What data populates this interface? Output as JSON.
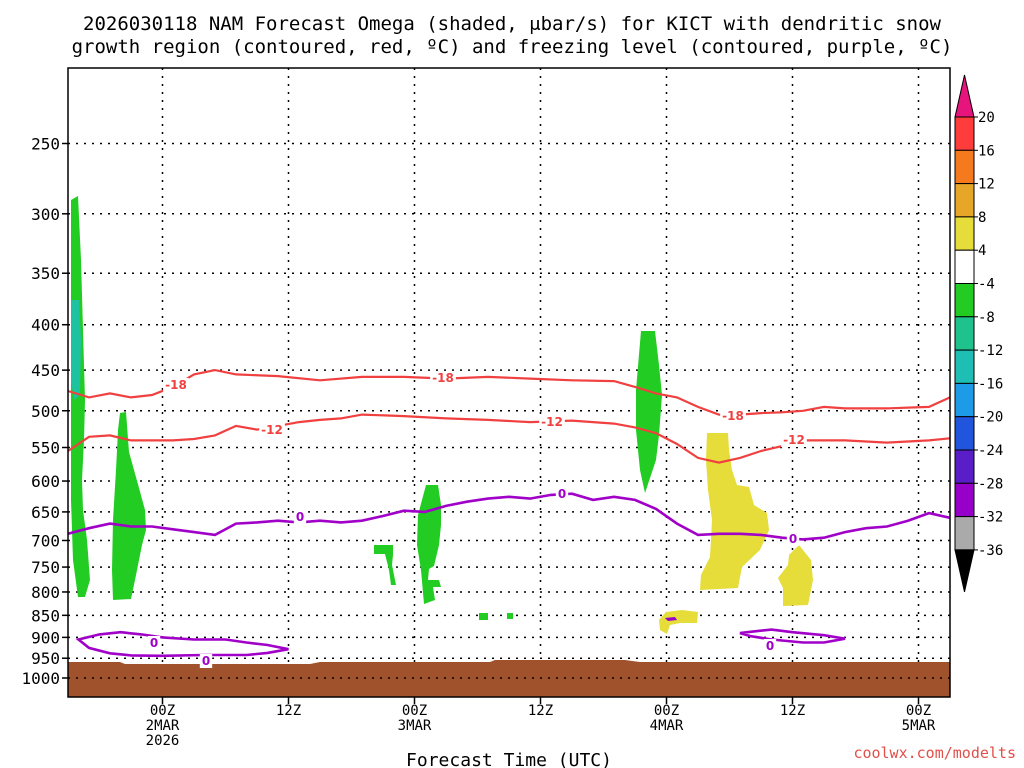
{
  "chart_data": {
    "type": "time-height cross section",
    "title_line1": "2026030118 NAM Forecast Omega (shaded, μbar/s) for KICT with dendritic snow",
    "title_line2": "growth region (contoured, red, ºC) and freezing level (contoured, purple, ºC)",
    "xlabel": "Forecast Time (UTC)",
    "credit": "coolwx.com/modelts",
    "colors": {
      "snow_growth": "#f04040",
      "freezing": "#a000c8",
      "ground": "#a0522d",
      "omega_green": "#22cc22",
      "omega_teal": "#1fc2a0",
      "omega_yellow": "#e6dc3a"
    },
    "y_axis": {
      "unit": "mb",
      "ticks": [
        "250",
        "300",
        "350",
        "400",
        "450",
        "500",
        "550",
        "600",
        "650",
        "700",
        "750",
        "800",
        "850",
        "900",
        "950",
        "1000"
      ]
    },
    "x_axis": {
      "range_hours": [
        -3,
        81
      ],
      "ticks": [
        {
          "hour": 6,
          "lines": [
            "00Z",
            "2MAR",
            "2026"
          ]
        },
        {
          "hour": 18,
          "lines": [
            "12Z"
          ]
        },
        {
          "hour": 30,
          "lines": [
            "00Z",
            "3MAR"
          ]
        },
        {
          "hour": 42,
          "lines": [
            "12Z"
          ]
        },
        {
          "hour": 54,
          "lines": [
            "00Z",
            "4MAR"
          ]
        },
        {
          "hour": 66,
          "lines": [
            "12Z"
          ]
        },
        {
          "hour": 78,
          "lines": [
            "00Z",
            "5MAR"
          ]
        }
      ]
    },
    "colorbar": {
      "levels": [
        "20",
        "16",
        "12",
        "8",
        "4",
        "-4",
        "-8",
        "-12",
        "-16",
        "-20",
        "-24",
        "-28",
        "-32",
        "-36"
      ],
      "colors": [
        "#ff3c3c",
        "#f57a1e",
        "#e6a628",
        "#e6dc3a",
        "#ffffff",
        "#22cc22",
        "#1fc28c",
        "#1ebeb4",
        "#1e9be6",
        "#2255dd",
        "#5a1ec8",
        "#9600c8",
        "#aaaaaa"
      ],
      "top_cap": "#e6147d",
      "bottom_cap": "#000000"
    },
    "contour_labels": {
      "snow_growth_upper": "-18",
      "snow_growth_lower": "-12",
      "freezing_level": "0"
    },
    "contours": {
      "iso_minus18": [
        [
          -3,
          475
        ],
        [
          -1,
          483
        ],
        [
          1,
          478
        ],
        [
          3,
          483
        ],
        [
          5,
          480
        ],
        [
          7,
          470
        ],
        [
          9,
          455
        ],
        [
          11,
          450
        ],
        [
          13,
          455
        ],
        [
          17,
          457
        ],
        [
          21,
          462
        ],
        [
          25,
          458
        ],
        [
          29,
          458
        ],
        [
          33,
          460
        ],
        [
          37,
          458
        ],
        [
          41,
          460
        ],
        [
          45,
          462
        ],
        [
          49,
          463
        ],
        [
          51,
          470
        ],
        [
          53,
          478
        ],
        [
          55,
          483
        ],
        [
          57,
          495
        ],
        [
          59,
          505
        ],
        [
          61,
          505
        ],
        [
          63,
          503
        ],
        [
          65,
          502
        ],
        [
          67,
          500
        ],
        [
          69,
          495
        ],
        [
          71,
          497
        ],
        [
          75,
          497
        ],
        [
          79,
          495
        ],
        [
          81,
          483
        ]
      ],
      "iso_minus12": [
        [
          -3,
          555
        ],
        [
          -1,
          535
        ],
        [
          1,
          533
        ],
        [
          3,
          540
        ],
        [
          5,
          540
        ],
        [
          7,
          540
        ],
        [
          9,
          538
        ],
        [
          11,
          533
        ],
        [
          13,
          520
        ],
        [
          15,
          525
        ],
        [
          17,
          520
        ],
        [
          19,
          515
        ],
        [
          21,
          512
        ],
        [
          23,
          510
        ],
        [
          25,
          505
        ],
        [
          29,
          507
        ],
        [
          33,
          510
        ],
        [
          37,
          512
        ],
        [
          41,
          515
        ],
        [
          45,
          513
        ],
        [
          49,
          517
        ],
        [
          51,
          522
        ],
        [
          53,
          530
        ],
        [
          55,
          545
        ],
        [
          57,
          565
        ],
        [
          59,
          572
        ],
        [
          61,
          565
        ],
        [
          63,
          555
        ],
        [
          65,
          548
        ],
        [
          67,
          540
        ],
        [
          69,
          540
        ],
        [
          71,
          540
        ],
        [
          75,
          543
        ],
        [
          79,
          540
        ],
        [
          81,
          537
        ]
      ],
      "iso_zero": [
        [
          -3,
          688
        ],
        [
          -1,
          678
        ],
        [
          1,
          670
        ],
        [
          3,
          675
        ],
        [
          5,
          675
        ],
        [
          7,
          680
        ],
        [
          9,
          685
        ],
        [
          11,
          690
        ],
        [
          13,
          670
        ],
        [
          15,
          668
        ],
        [
          17,
          665
        ],
        [
          19,
          668
        ],
        [
          21,
          665
        ],
        [
          23,
          668
        ],
        [
          25,
          665
        ],
        [
          27,
          657
        ],
        [
          29,
          648
        ],
        [
          31,
          650
        ],
        [
          33,
          640
        ],
        [
          35,
          633
        ],
        [
          37,
          628
        ],
        [
          39,
          625
        ],
        [
          41,
          628
        ],
        [
          43,
          622
        ],
        [
          45,
          620
        ],
        [
          47,
          630
        ],
        [
          49,
          625
        ],
        [
          51,
          630
        ],
        [
          53,
          645
        ],
        [
          55,
          670
        ],
        [
          57,
          690
        ],
        [
          59,
          688
        ],
        [
          61,
          688
        ],
        [
          63,
          690
        ],
        [
          65,
          695
        ],
        [
          67,
          698
        ],
        [
          69,
          695
        ],
        [
          71,
          685
        ],
        [
          73,
          678
        ],
        [
          75,
          675
        ],
        [
          77,
          665
        ],
        [
          79,
          652
        ],
        [
          81,
          660
        ]
      ],
      "iso_zero_low_west": [
        [
          -2,
          905
        ],
        [
          0,
          893
        ],
        [
          2,
          888
        ],
        [
          4,
          893
        ],
        [
          6,
          900
        ],
        [
          9,
          905
        ],
        [
          12,
          905
        ],
        [
          14,
          912
        ],
        [
          16,
          918
        ],
        [
          18,
          928
        ],
        [
          16,
          937
        ],
        [
          14,
          942
        ],
        [
          10,
          942
        ],
        [
          6,
          944
        ],
        [
          3,
          943
        ],
        [
          1,
          938
        ],
        [
          -1,
          925
        ],
        [
          -2,
          905
        ]
      ],
      "iso_zero_low_east": [
        [
          62,
          887
        ],
        [
          64,
          882
        ],
        [
          66,
          888
        ],
        [
          69,
          895
        ],
        [
          71,
          903
        ],
        [
          69,
          912
        ],
        [
          67,
          912
        ],
        [
          64,
          905
        ],
        [
          62,
          897
        ],
        [
          61,
          890
        ],
        [
          62,
          887
        ]
      ]
    }
  }
}
